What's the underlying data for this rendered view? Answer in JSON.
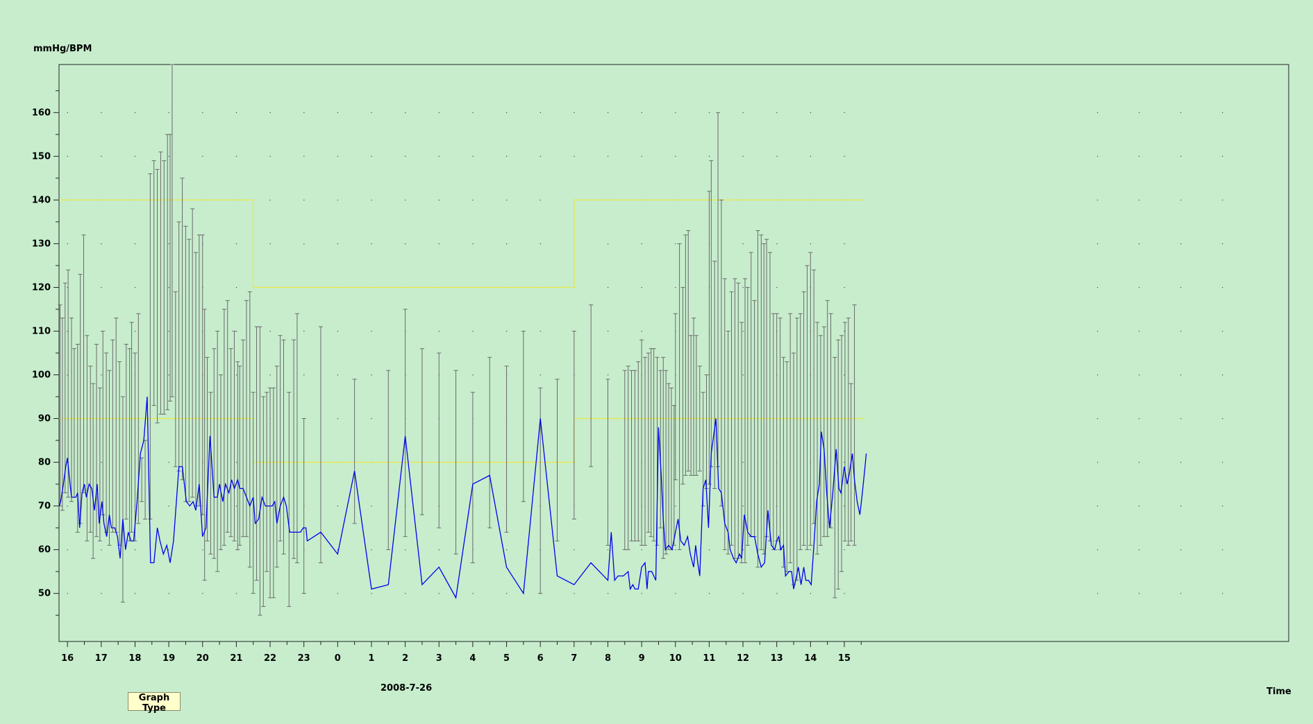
{
  "chart_data": {
    "type": "line",
    "ylabel": "mmHg/BPM",
    "xlabel": "Time",
    "date_label": "2008-7-26",
    "ylim": [
      39,
      171
    ],
    "yticks": [
      50,
      60,
      70,
      80,
      90,
      100,
      110,
      120,
      130,
      140,
      150,
      160
    ],
    "xlim": [
      15.75,
      45.25
    ],
    "x_ticklabels": [
      {
        "x": 16,
        "label": "16"
      },
      {
        "x": 17,
        "label": "17"
      },
      {
        "x": 18,
        "label": "18"
      },
      {
        "x": 19,
        "label": "19"
      },
      {
        "x": 20,
        "label": "20"
      },
      {
        "x": 21,
        "label": "21"
      },
      {
        "x": 22,
        "label": "22"
      },
      {
        "x": 23,
        "label": "23"
      },
      {
        "x": 24,
        "label": "0"
      },
      {
        "x": 25,
        "label": "1"
      },
      {
        "x": 26,
        "label": "2"
      },
      {
        "x": 27,
        "label": "3"
      },
      {
        "x": 28,
        "label": "4"
      },
      {
        "x": 29,
        "label": "5"
      },
      {
        "x": 30,
        "label": "6"
      },
      {
        "x": 31,
        "label": "7"
      },
      {
        "x": 32,
        "label": "8"
      },
      {
        "x": 33,
        "label": "9"
      },
      {
        "x": 34,
        "label": "10"
      },
      {
        "x": 35,
        "label": "11"
      },
      {
        "x": 36,
        "label": "12"
      },
      {
        "x": 37,
        "label": "13"
      },
      {
        "x": 38,
        "label": "14"
      },
      {
        "x": 39,
        "label": "15"
      }
    ],
    "grid": "dotted",
    "limits": {
      "systolic": [
        [
          15.75,
          140
        ],
        [
          21.5,
          140
        ],
        [
          21.5,
          120
        ],
        [
          31,
          120
        ],
        [
          31,
          140
        ],
        [
          39.6,
          140
        ]
      ],
      "diastolic": [
        [
          15.75,
          90
        ],
        [
          21.5,
          90
        ],
        [
          21.5,
          80
        ],
        [
          31,
          80
        ],
        [
          31,
          90
        ],
        [
          39.6,
          90
        ]
      ],
      "color": "#e8e84a"
    },
    "bp_range_color": "#6a6a6a",
    "pulse_color": "#0000ee",
    "bp_ranges": [
      [
        15.78,
        116,
        70
      ],
      [
        15.85,
        113,
        69
      ],
      [
        15.93,
        121,
        73
      ],
      [
        16.02,
        124,
        72
      ],
      [
        16.12,
        113,
        71
      ],
      [
        16.2,
        106,
        72
      ],
      [
        16.3,
        107,
        64
      ],
      [
        16.38,
        123,
        66
      ],
      [
        16.48,
        132,
        73
      ],
      [
        16.58,
        109,
        62
      ],
      [
        16.68,
        102,
        64
      ],
      [
        16.76,
        98,
        58
      ],
      [
        16.86,
        107,
        63
      ],
      [
        16.96,
        97,
        62
      ],
      [
        17.05,
        110,
        68
      ],
      [
        17.15,
        105,
        64
      ],
      [
        17.24,
        101,
        61
      ],
      [
        17.34,
        108,
        64
      ],
      [
        17.44,
        113,
        64
      ],
      [
        17.54,
        103,
        61
      ],
      [
        17.64,
        95,
        48
      ],
      [
        17.74,
        107,
        67
      ],
      [
        17.84,
        106,
        62
      ],
      [
        17.9,
        112,
        64
      ],
      [
        18.0,
        105,
        62
      ],
      [
        18.1,
        114,
        66
      ],
      [
        18.2,
        81,
        71
      ],
      [
        18.3,
        85,
        67
      ],
      [
        18.45,
        146,
        67
      ],
      [
        18.56,
        149,
        93
      ],
      [
        18.66,
        147,
        89
      ],
      [
        18.76,
        151,
        91
      ],
      [
        18.86,
        149,
        91
      ],
      [
        18.96,
        155,
        92
      ],
      [
        19.04,
        155,
        94
      ],
      [
        19.1,
        171,
        95
      ],
      [
        19.2,
        119,
        79
      ],
      [
        19.3,
        135,
        78
      ],
      [
        19.4,
        145,
        76
      ],
      [
        19.5,
        134,
        71
      ],
      [
        19.6,
        131,
        71
      ],
      [
        19.7,
        138,
        72
      ],
      [
        19.8,
        128,
        70
      ],
      [
        19.9,
        132,
        70
      ],
      [
        20.0,
        132,
        68
      ],
      [
        20.06,
        115,
        53
      ],
      [
        20.14,
        104,
        62
      ],
      [
        20.24,
        96,
        59
      ],
      [
        20.34,
        106,
        58
      ],
      [
        20.44,
        110,
        55
      ],
      [
        20.54,
        100,
        60
      ],
      [
        20.64,
        115,
        61
      ],
      [
        20.74,
        117,
        64
      ],
      [
        20.84,
        106,
        63
      ],
      [
        20.94,
        110,
        62
      ],
      [
        21.04,
        103,
        60
      ],
      [
        21.1,
        102,
        61
      ],
      [
        21.2,
        108,
        63
      ],
      [
        21.3,
        117,
        63
      ],
      [
        21.4,
        119,
        56
      ],
      [
        21.5,
        96,
        50
      ],
      [
        21.6,
        111,
        53
      ],
      [
        21.7,
        111,
        45
      ],
      [
        21.8,
        95,
        47
      ],
      [
        21.9,
        96,
        55
      ],
      [
        22.0,
        97,
        49
      ],
      [
        22.1,
        97,
        49
      ],
      [
        22.2,
        102,
        56
      ],
      [
        22.3,
        109,
        62
      ],
      [
        22.4,
        108,
        59
      ],
      [
        22.56,
        96,
        47
      ],
      [
        22.7,
        108,
        58
      ],
      [
        22.8,
        114,
        57
      ],
      [
        23.0,
        90,
        50
      ],
      [
        23.5,
        111,
        57
      ],
      [
        24.5,
        99,
        66
      ],
      [
        25.5,
        101,
        60
      ],
      [
        26.0,
        115,
        63
      ],
      [
        26.5,
        106,
        68
      ],
      [
        27.0,
        105,
        65
      ],
      [
        27.5,
        101,
        59
      ],
      [
        28.0,
        96,
        57
      ],
      [
        28.5,
        104,
        65
      ],
      [
        29.0,
        102,
        64
      ],
      [
        29.5,
        110,
        71
      ],
      [
        30.0,
        97,
        50
      ],
      [
        30.5,
        99,
        62
      ],
      [
        31.0,
        110,
        67
      ],
      [
        31.5,
        116,
        79
      ],
      [
        32.0,
        99,
        61
      ],
      [
        32.5,
        101,
        60
      ],
      [
        32.6,
        102,
        60
      ],
      [
        32.7,
        101,
        62
      ],
      [
        32.8,
        101,
        62
      ],
      [
        32.9,
        103,
        62
      ],
      [
        33.0,
        108,
        61
      ],
      [
        33.1,
        104,
        61
      ],
      [
        33.2,
        105,
        64
      ],
      [
        33.28,
        106,
        63
      ],
      [
        33.36,
        106,
        62
      ],
      [
        33.46,
        104,
        61
      ],
      [
        33.56,
        101,
        65
      ],
      [
        33.64,
        104,
        58
      ],
      [
        33.72,
        101,
        59
      ],
      [
        33.8,
        98,
        60
      ],
      [
        33.88,
        97,
        60
      ],
      [
        33.96,
        93,
        61
      ],
      [
        34.0,
        114,
        76
      ],
      [
        34.12,
        130,
        60
      ],
      [
        34.22,
        120,
        75
      ],
      [
        34.3,
        132,
        77
      ],
      [
        34.38,
        133,
        78
      ],
      [
        34.46,
        109,
        77
      ],
      [
        34.54,
        113,
        77
      ],
      [
        34.62,
        109,
        77
      ],
      [
        34.72,
        102,
        78
      ],
      [
        34.82,
        96,
        70
      ],
      [
        34.92,
        100,
        74
      ],
      [
        35.0,
        142,
        75
      ],
      [
        35.06,
        149,
        79
      ],
      [
        35.16,
        126,
        74
      ],
      [
        35.26,
        160,
        79
      ],
      [
        35.36,
        140,
        70
      ],
      [
        35.46,
        122,
        60
      ],
      [
        35.56,
        110,
        59
      ],
      [
        35.66,
        119,
        61
      ],
      [
        35.76,
        122,
        58
      ],
      [
        35.86,
        121,
        58
      ],
      [
        35.96,
        112,
        57
      ],
      [
        36.06,
        122,
        57
      ],
      [
        36.14,
        120,
        61
      ],
      [
        36.24,
        128,
        63
      ],
      [
        36.34,
        117,
        63
      ],
      [
        36.44,
        133,
        56
      ],
      [
        36.54,
        132,
        60
      ],
      [
        36.62,
        130,
        59
      ],
      [
        36.7,
        131,
        63
      ],
      [
        36.8,
        128,
        62
      ],
      [
        36.9,
        114,
        60
      ],
      [
        37.0,
        114,
        62
      ],
      [
        37.1,
        113,
        60
      ],
      [
        37.2,
        104,
        56
      ],
      [
        37.3,
        103,
        55
      ],
      [
        37.4,
        114,
        57
      ],
      [
        37.5,
        105,
        52
      ],
      [
        37.6,
        113,
        53
      ],
      [
        37.7,
        114,
        60
      ],
      [
        37.8,
        119,
        61
      ],
      [
        37.9,
        125,
        60
      ],
      [
        38.0,
        128,
        61
      ],
      [
        38.1,
        124,
        66
      ],
      [
        38.2,
        112,
        59
      ],
      [
        38.3,
        109,
        61
      ],
      [
        38.4,
        111,
        63
      ],
      [
        38.5,
        117,
        63
      ],
      [
        38.6,
        114,
        65
      ],
      [
        38.72,
        104,
        49
      ],
      [
        38.82,
        108,
        51
      ],
      [
        38.92,
        109,
        55
      ],
      [
        39.02,
        112,
        62
      ],
      [
        39.12,
        113,
        61
      ],
      [
        39.2,
        98,
        62
      ],
      [
        39.3,
        116,
        61
      ]
    ],
    "pulse": [
      [
        15.75,
        70
      ],
      [
        15.8,
        71
      ],
      [
        15.88,
        75
      ],
      [
        15.95,
        79
      ],
      [
        16.0,
        81
      ],
      [
        16.05,
        77
      ],
      [
        16.12,
        72
      ],
      [
        16.25,
        72
      ],
      [
        16.3,
        73
      ],
      [
        16.36,
        65
      ],
      [
        16.43,
        73
      ],
      [
        16.5,
        75
      ],
      [
        16.56,
        72
      ],
      [
        16.64,
        75
      ],
      [
        16.72,
        74
      ],
      [
        16.8,
        69
      ],
      [
        16.88,
        75
      ],
      [
        16.94,
        66
      ],
      [
        17.02,
        71
      ],
      [
        17.08,
        66
      ],
      [
        17.16,
        63
      ],
      [
        17.24,
        68
      ],
      [
        17.3,
        65
      ],
      [
        17.4,
        65
      ],
      [
        17.48,
        63
      ],
      [
        17.56,
        58
      ],
      [
        17.64,
        67
      ],
      [
        17.72,
        60
      ],
      [
        17.8,
        64
      ],
      [
        17.88,
        62
      ],
      [
        17.96,
        62
      ],
      [
        18.06,
        71
      ],
      [
        18.16,
        82
      ],
      [
        18.26,
        85
      ],
      [
        18.36,
        95
      ],
      [
        18.46,
        57
      ],
      [
        18.56,
        57
      ],
      [
        18.66,
        65
      ],
      [
        18.74,
        62
      ],
      [
        18.84,
        59
      ],
      [
        18.94,
        61
      ],
      [
        19.04,
        57
      ],
      [
        19.14,
        62
      ],
      [
        19.3,
        79
      ],
      [
        19.4,
        79
      ],
      [
        19.52,
        71
      ],
      [
        19.62,
        70
      ],
      [
        19.72,
        71
      ],
      [
        19.8,
        69
      ],
      [
        19.9,
        75
      ],
      [
        20.0,
        63
      ],
      [
        20.1,
        65
      ],
      [
        20.22,
        86
      ],
      [
        20.34,
        72
      ],
      [
        20.44,
        72
      ],
      [
        20.5,
        75
      ],
      [
        20.6,
        71
      ],
      [
        20.68,
        75
      ],
      [
        20.78,
        73
      ],
      [
        20.86,
        76
      ],
      [
        20.94,
        74
      ],
      [
        21.04,
        76
      ],
      [
        21.1,
        74
      ],
      [
        21.2,
        74
      ],
      [
        21.3,
        72
      ],
      [
        21.4,
        70
      ],
      [
        21.5,
        72
      ],
      [
        21.56,
        66
      ],
      [
        21.66,
        67
      ],
      [
        21.76,
        72
      ],
      [
        21.86,
        70
      ],
      [
        21.96,
        70
      ],
      [
        22.06,
        70
      ],
      [
        22.14,
        71
      ],
      [
        22.2,
        66
      ],
      [
        22.3,
        70
      ],
      [
        22.4,
        72
      ],
      [
        22.48,
        70
      ],
      [
        22.58,
        64
      ],
      [
        22.8,
        64
      ],
      [
        22.9,
        64
      ],
      [
        22.98,
        65
      ],
      [
        23.06,
        65
      ],
      [
        23.1,
        62
      ],
      [
        23.5,
        64
      ],
      [
        24.0,
        59
      ],
      [
        24.5,
        78
      ],
      [
        25.0,
        51
      ],
      [
        25.5,
        52
      ],
      [
        26.0,
        86
      ],
      [
        26.5,
        52
      ],
      [
        27.0,
        56
      ],
      [
        27.5,
        49
      ],
      [
        28.0,
        75
      ],
      [
        28.5,
        77
      ],
      [
        29.0,
        56
      ],
      [
        29.5,
        50
      ],
      [
        30.0,
        90
      ],
      [
        30.5,
        54
      ],
      [
        31.0,
        52
      ],
      [
        31.5,
        57
      ],
      [
        32.0,
        53
      ],
      [
        32.1,
        64
      ],
      [
        32.2,
        53
      ],
      [
        32.3,
        54
      ],
      [
        32.46,
        54
      ],
      [
        32.6,
        55
      ],
      [
        32.66,
        51
      ],
      [
        32.74,
        52
      ],
      [
        32.8,
        51
      ],
      [
        32.9,
        51
      ],
      [
        33.0,
        56
      ],
      [
        33.1,
        57
      ],
      [
        33.16,
        51
      ],
      [
        33.2,
        55
      ],
      [
        33.3,
        55
      ],
      [
        33.36,
        54
      ],
      [
        33.42,
        53
      ],
      [
        33.5,
        88
      ],
      [
        33.58,
        77
      ],
      [
        33.64,
        67
      ],
      [
        33.7,
        60
      ],
      [
        33.8,
        61
      ],
      [
        33.9,
        60
      ],
      [
        34.0,
        64
      ],
      [
        34.08,
        67
      ],
      [
        34.16,
        62
      ],
      [
        34.26,
        61
      ],
      [
        34.36,
        63
      ],
      [
        34.44,
        59
      ],
      [
        34.54,
        56
      ],
      [
        34.6,
        61
      ],
      [
        34.66,
        57
      ],
      [
        34.72,
        54
      ],
      [
        34.82,
        74
      ],
      [
        34.9,
        76
      ],
      [
        34.98,
        65
      ],
      [
        35.06,
        82
      ],
      [
        35.2,
        90
      ],
      [
        35.28,
        74
      ],
      [
        35.36,
        73
      ],
      [
        35.46,
        66
      ],
      [
        35.56,
        64
      ],
      [
        35.62,
        60
      ],
      [
        35.72,
        58
      ],
      [
        35.8,
        57
      ],
      [
        35.9,
        59
      ],
      [
        35.96,
        58
      ],
      [
        36.04,
        68
      ],
      [
        36.14,
        64
      ],
      [
        36.24,
        63
      ],
      [
        36.34,
        63
      ],
      [
        36.44,
        59
      ],
      [
        36.54,
        56
      ],
      [
        36.64,
        57
      ],
      [
        36.74,
        69
      ],
      [
        36.84,
        61
      ],
      [
        36.94,
        60
      ],
      [
        37.0,
        62
      ],
      [
        37.06,
        63
      ],
      [
        37.12,
        60
      ],
      [
        37.2,
        61
      ],
      [
        37.26,
        54
      ],
      [
        37.36,
        55
      ],
      [
        37.44,
        55
      ],
      [
        37.5,
        51
      ],
      [
        37.56,
        53
      ],
      [
        37.64,
        56
      ],
      [
        37.72,
        52
      ],
      [
        37.8,
        56
      ],
      [
        37.86,
        53
      ],
      [
        37.94,
        53
      ],
      [
        38.02,
        52
      ],
      [
        38.1,
        61
      ],
      [
        38.18,
        71
      ],
      [
        38.26,
        75
      ],
      [
        38.32,
        87
      ],
      [
        38.4,
        83
      ],
      [
        38.48,
        73
      ],
      [
        38.56,
        65
      ],
      [
        38.66,
        73
      ],
      [
        38.76,
        83
      ],
      [
        38.84,
        74
      ],
      [
        38.9,
        73
      ],
      [
        39.0,
        79
      ],
      [
        39.08,
        75
      ],
      [
        39.14,
        77
      ],
      [
        39.24,
        82
      ],
      [
        39.3,
        76
      ],
      [
        39.38,
        71
      ],
      [
        39.46,
        68
      ],
      [
        39.52,
        72
      ],
      [
        39.6,
        78
      ],
      [
        39.65,
        82
      ]
    ]
  },
  "controls": {
    "graph_type_label": "Graph Type"
  }
}
